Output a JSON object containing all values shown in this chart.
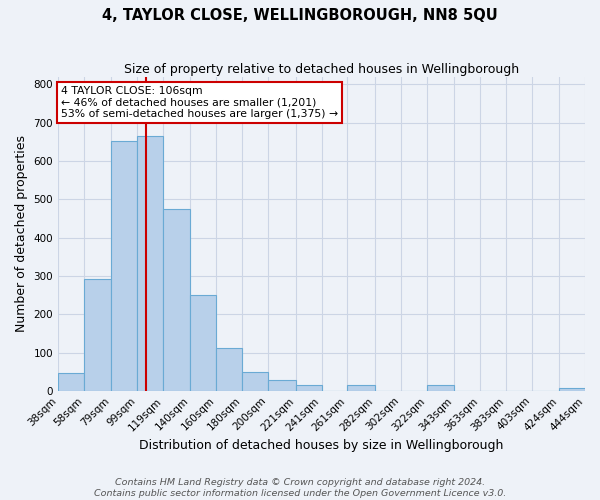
{
  "title": "4, TAYLOR CLOSE, WELLINGBOROUGH, NN8 5QU",
  "subtitle": "Size of property relative to detached houses in Wellingborough",
  "xlabel": "Distribution of detached houses by size in Wellingborough",
  "ylabel": "Number of detached properties",
  "bin_labels": [
    "38sqm",
    "58sqm",
    "79sqm",
    "99sqm",
    "119sqm",
    "140sqm",
    "160sqm",
    "180sqm",
    "200sqm",
    "221sqm",
    "241sqm",
    "261sqm",
    "282sqm",
    "302sqm",
    "322sqm",
    "343sqm",
    "363sqm",
    "383sqm",
    "403sqm",
    "424sqm",
    "444sqm"
  ],
  "bin_edges": [
    38,
    58,
    79,
    99,
    119,
    140,
    160,
    180,
    200,
    221,
    241,
    261,
    282,
    302,
    322,
    343,
    363,
    383,
    403,
    424,
    444
  ],
  "bar_heights": [
    47,
    293,
    651,
    665,
    475,
    249,
    113,
    49,
    27,
    15,
    0,
    15,
    0,
    0,
    15,
    0,
    0,
    0,
    0,
    7
  ],
  "bar_color": "#b8d0ea",
  "bar_edge_color": "#6aaad4",
  "vline_x": 106,
  "vline_color": "#cc0000",
  "annotation_text": "4 TAYLOR CLOSE: 106sqm\n← 46% of detached houses are smaller (1,201)\n53% of semi-detached houses are larger (1,375) →",
  "annotation_box_color": "white",
  "annotation_box_edge_color": "#cc0000",
  "ylim": [
    0,
    820
  ],
  "yticks": [
    0,
    100,
    200,
    300,
    400,
    500,
    600,
    700,
    800
  ],
  "footer_line1": "Contains HM Land Registry data © Crown copyright and database right 2024.",
  "footer_line2": "Contains public sector information licensed under the Open Government Licence v3.0.",
  "background_color": "#eef2f8",
  "grid_color": "#ccd5e5",
  "title_fontsize": 10.5,
  "subtitle_fontsize": 9,
  "axis_label_fontsize": 9,
  "tick_fontsize": 7.5,
  "footer_fontsize": 6.8
}
